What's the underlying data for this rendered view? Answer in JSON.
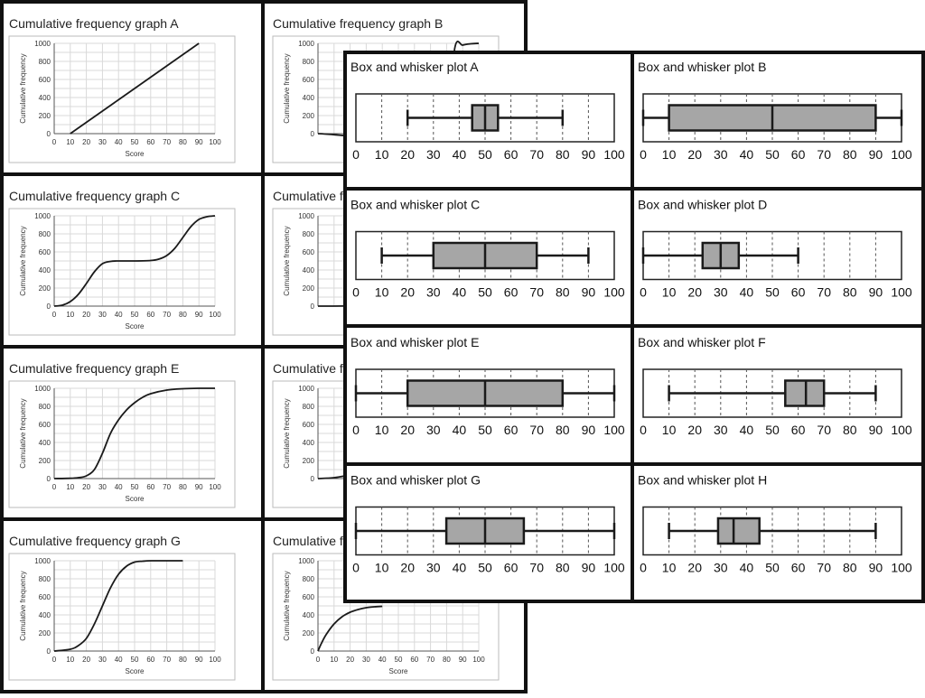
{
  "cumulative_frequency_cards": [
    {
      "title": "Cumulative frequency graph A",
      "y_label": "Cumulative frequency",
      "x_label": "Score"
    },
    {
      "title": "Cumulative frequency graph B",
      "y_label": "Cumulative frequency",
      "x_label": ""
    },
    {
      "title": "Cumulative frequency graph C",
      "y_label": "Cumulative frequency",
      "x_label": "Score"
    },
    {
      "title": "Cumulative frequency graph D",
      "y_label": "Cumulative frequency",
      "x_label": ""
    },
    {
      "title": "Cumulative frequency graph E",
      "y_label": "Cumulative frequency",
      "x_label": "Score"
    },
    {
      "title": "Cumulative frequency graph F",
      "y_label": "Cumulative frequency",
      "x_label": ""
    },
    {
      "title": "Cumulative frequency graph G",
      "y_label": "Cumulative frequency",
      "x_label": "Score"
    },
    {
      "title": "Cumulative frequency graph H",
      "y_label": "Cumulative frequency",
      "x_label": "Score"
    }
  ],
  "box_plot_cards": [
    {
      "title": "Box and whisker plot A"
    },
    {
      "title": "Box and whisker plot B"
    },
    {
      "title": "Box and whisker plot C"
    },
    {
      "title": "Box and whisker plot D"
    },
    {
      "title": "Box and whisker plot E"
    },
    {
      "title": "Box and whisker plot F"
    },
    {
      "title": "Box and whisker plot G"
    },
    {
      "title": "Box and whisker plot H"
    }
  ],
  "colors": {
    "line": "#1a1a1a",
    "box_fill": "#a6a6a6",
    "grid": "#d9d9d9",
    "border": "#111111"
  },
  "chart_data": [
    {
      "type": "line",
      "title": "Cumulative frequency graph A",
      "xlabel": "Score",
      "ylabel": "Cumulative frequency",
      "xlim": [
        0,
        100
      ],
      "ylim": [
        0,
        1000
      ],
      "x_ticks": [
        0,
        10,
        20,
        30,
        40,
        50,
        60,
        70,
        80,
        90,
        100
      ],
      "y_ticks": [
        0,
        200,
        400,
        600,
        800,
        1000
      ],
      "x": [
        10,
        20,
        30,
        40,
        50,
        60,
        70,
        80,
        90
      ],
      "y": [
        0,
        125,
        250,
        375,
        500,
        625,
        750,
        875,
        1000
      ]
    },
    {
      "type": "line",
      "title": "Cumulative frequency graph B",
      "xlabel": "",
      "ylabel": "Cumulative frequency",
      "xlim": [
        0,
        100
      ],
      "ylim": [
        0,
        1000
      ],
      "y_ticks": [
        0,
        200,
        400,
        600,
        800,
        1000
      ],
      "x": [
        0,
        80,
        85,
        90,
        95,
        100
      ],
      "y": [
        0,
        0,
        940,
        980,
        995,
        1000
      ]
    },
    {
      "type": "line",
      "title": "Cumulative frequency graph C",
      "xlabel": "Score",
      "ylabel": "Cumulative frequency",
      "xlim": [
        0,
        100
      ],
      "ylim": [
        0,
        1000
      ],
      "x_ticks": [
        0,
        10,
        20,
        30,
        40,
        50,
        60,
        70,
        80,
        90,
        100
      ],
      "y_ticks": [
        0,
        200,
        400,
        600,
        800,
        1000
      ],
      "x": [
        0,
        5,
        10,
        15,
        20,
        25,
        30,
        35,
        40,
        50,
        60,
        65,
        70,
        75,
        80,
        85,
        90,
        95,
        100
      ],
      "y": [
        0,
        10,
        50,
        130,
        250,
        380,
        470,
        495,
        500,
        500,
        505,
        520,
        560,
        640,
        760,
        880,
        960,
        990,
        1000
      ]
    },
    {
      "type": "line",
      "title": "Cumulative frequency graph D",
      "xlabel": "",
      "ylabel": "Cumulative frequency",
      "xlim": [
        0,
        100
      ],
      "ylim": [
        0,
        1000
      ],
      "y_ticks": [
        0,
        200,
        400,
        600,
        800,
        1000
      ],
      "x": [
        0,
        10,
        20,
        30
      ],
      "y": [
        0,
        0,
        2,
        5
      ]
    },
    {
      "type": "line",
      "title": "Cumulative frequency graph E",
      "xlabel": "Score",
      "ylabel": "Cumulative frequency",
      "xlim": [
        0,
        100
      ],
      "ylim": [
        0,
        1000
      ],
      "x_ticks": [
        0,
        10,
        20,
        30,
        40,
        50,
        60,
        70,
        80,
        90,
        100
      ],
      "y_ticks": [
        0,
        200,
        400,
        600,
        800,
        1000
      ],
      "x": [
        0,
        10,
        15,
        20,
        25,
        30,
        35,
        40,
        45,
        50,
        55,
        60,
        70,
        80,
        90,
        100
      ],
      "y": [
        0,
        3,
        10,
        30,
        100,
        280,
        500,
        650,
        760,
        840,
        900,
        940,
        980,
        995,
        1000,
        1000
      ]
    },
    {
      "type": "line",
      "title": "Cumulative frequency graph F",
      "xlabel": "",
      "ylabel": "Cumulative frequency",
      "xlim": [
        0,
        100
      ],
      "ylim": [
        0,
        1000
      ],
      "y_ticks": [
        0,
        200,
        400,
        600,
        800,
        1000
      ],
      "x": [
        0,
        10,
        20,
        30,
        35
      ],
      "y": [
        0,
        10,
        40,
        80,
        100
      ]
    },
    {
      "type": "line",
      "title": "Cumulative frequency graph G",
      "xlabel": "Score",
      "ylabel": "Cumulative frequency",
      "xlim": [
        0,
        100
      ],
      "ylim": [
        0,
        1000
      ],
      "x_ticks": [
        0,
        10,
        20,
        30,
        40,
        50,
        60,
        70,
        80,
        90,
        100
      ],
      "y_ticks": [
        0,
        200,
        400,
        600,
        800,
        1000
      ],
      "x": [
        0,
        10,
        15,
        20,
        25,
        30,
        35,
        40,
        45,
        50,
        55,
        60,
        70,
        80
      ],
      "y": [
        0,
        20,
        60,
        140,
        300,
        500,
        700,
        850,
        940,
        985,
        995,
        1000,
        1000,
        1000
      ]
    },
    {
      "type": "line",
      "title": "Cumulative frequency graph H",
      "xlabel": "Score",
      "ylabel": "Cumulative frequency",
      "xlim": [
        0,
        100
      ],
      "ylim": [
        0,
        1000
      ],
      "x_ticks": [
        0,
        10,
        20,
        30,
        40,
        50,
        60,
        70,
        80,
        90,
        100
      ],
      "y_ticks": [
        0,
        200,
        400,
        600,
        800,
        1000
      ],
      "x": [
        0,
        2,
        5,
        10,
        15,
        20,
        25,
        30,
        35,
        40
      ],
      "y": [
        0,
        80,
        180,
        300,
        380,
        430,
        460,
        480,
        490,
        495
      ]
    },
    {
      "type": "box",
      "title": "Box and whisker plot A",
      "xlim": [
        0,
        100
      ],
      "x_ticks": [
        0,
        10,
        20,
        30,
        40,
        50,
        60,
        70,
        80,
        90,
        100
      ],
      "min": 20,
      "q1": 45,
      "median": 50,
      "q3": 55,
      "max": 80
    },
    {
      "type": "box",
      "title": "Box and whisker plot B",
      "xlim": [
        0,
        100
      ],
      "x_ticks": [
        0,
        10,
        20,
        30,
        40,
        50,
        60,
        70,
        80,
        90,
        100
      ],
      "min": 0,
      "q1": 10,
      "median": 50,
      "q3": 90,
      "max": 100
    },
    {
      "type": "box",
      "title": "Box and whisker plot C",
      "xlim": [
        0,
        100
      ],
      "x_ticks": [
        0,
        10,
        20,
        30,
        40,
        50,
        60,
        70,
        80,
        90,
        100
      ],
      "min": 10,
      "q1": 30,
      "median": 50,
      "q3": 70,
      "max": 90
    },
    {
      "type": "box",
      "title": "Box and whisker plot D",
      "xlim": [
        0,
        100
      ],
      "x_ticks": [
        0,
        10,
        20,
        30,
        40,
        50,
        60,
        70,
        80,
        90,
        100
      ],
      "min": 0,
      "q1": 23,
      "median": 30,
      "q3": 37,
      "max": 60
    },
    {
      "type": "box",
      "title": "Box and whisker plot E",
      "xlim": [
        0,
        100
      ],
      "x_ticks": [
        0,
        10,
        20,
        30,
        40,
        50,
        60,
        70,
        80,
        90,
        100
      ],
      "min": 0,
      "q1": 20,
      "median": 50,
      "q3": 80,
      "max": 100
    },
    {
      "type": "box",
      "title": "Box and whisker plot F",
      "xlim": [
        0,
        100
      ],
      "x_ticks": [
        0,
        10,
        20,
        30,
        40,
        50,
        60,
        70,
        80,
        90,
        100
      ],
      "min": 10,
      "q1": 55,
      "median": 63,
      "q3": 70,
      "max": 90
    },
    {
      "type": "box",
      "title": "Box and whisker plot G",
      "xlim": [
        0,
        100
      ],
      "x_ticks": [
        0,
        10,
        20,
        30,
        40,
        50,
        60,
        70,
        80,
        90,
        100
      ],
      "min": 0,
      "q1": 35,
      "median": 50,
      "q3": 65,
      "max": 100
    },
    {
      "type": "box",
      "title": "Box and whisker plot H",
      "xlim": [
        0,
        100
      ],
      "x_ticks": [
        0,
        10,
        20,
        30,
        40,
        50,
        60,
        70,
        80,
        90,
        100
      ],
      "min": 10,
      "q1": 29,
      "median": 35,
      "q3": 45,
      "max": 90
    }
  ]
}
